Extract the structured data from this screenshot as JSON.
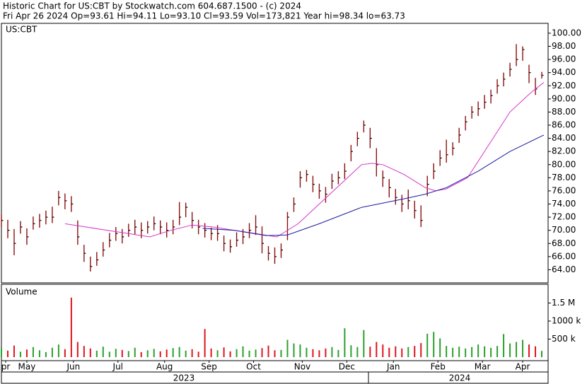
{
  "chart_data": {
    "type": "ohlc",
    "title": "Historic Chart for US:CBT by Stockwatch.com 604.687.1500 - (c) 2024",
    "subtitle": "Fri Apr 26 2024  Op=93.61  Hi=94.11  Lo=93.10  Cl=93.59  Vol=173,821  Year hi=98.34  lo=63.73",
    "symbol_label": "US:CBT",
    "volume_label": "Volume",
    "color": "#8b1010",
    "up_color": "#2ca02c",
    "down_color": "#e0141e",
    "x": [
      0,
      3,
      6,
      9,
      12,
      15,
      18,
      21,
      24,
      27,
      30,
      33,
      36,
      39,
      42,
      45,
      48,
      51,
      54,
      57,
      60,
      63,
      66,
      69,
      72,
      75,
      78,
      81,
      84,
      87,
      90,
      93,
      96,
      99,
      102,
      105,
      108,
      111,
      114,
      117,
      120,
      123,
      126,
      129,
      132,
      135,
      138,
      141,
      144,
      147,
      150,
      153,
      156,
      159,
      162,
      165,
      168,
      171,
      174,
      177,
      180,
      183,
      186,
      189,
      192,
      195,
      198,
      201,
      204,
      207,
      210,
      213,
      216,
      219,
      222,
      225,
      228,
      231,
      234,
      237,
      240,
      243,
      246,
      249,
      252,
      255
    ],
    "highs": [
      72.4,
      71.6,
      70.2,
      71.4,
      70.3,
      72.1,
      72.5,
      73,
      73.6,
      76,
      75.6,
      75.2,
      71.5,
      67.8,
      66,
      66.7,
      68.2,
      69.6,
      70.5,
      70.2,
      71,
      71.6,
      71.2,
      71.4,
      72.1,
      71.5,
      71.2,
      71.6,
      74.3,
      74.2,
      72.8,
      71.6,
      71.1,
      70.4,
      70.8,
      69.2,
      68.6,
      69.7,
      70.2,
      71.1,
      72.3,
      70.6,
      67.6,
      67.4,
      68,
      72.8,
      75,
      79,
      79.2,
      78.3,
      77.1,
      76.6,
      78.6,
      79,
      80.2,
      83,
      85,
      86.7,
      85.6,
      82.5,
      79.1,
      77.8,
      76.3,
      75.4,
      76.2,
      74.5,
      73.8,
      78.3,
      80.2,
      82.2,
      83.8,
      83.4,
      85.6,
      87.4,
      88.9,
      89.6,
      90.6,
      91.4,
      93,
      94,
      95.5,
      98.34,
      98,
      95.2,
      93.2,
      94.11
    ],
    "lows": [
      70.5,
      68.8,
      66.2,
      69.5,
      67.8,
      70.1,
      70.4,
      70.9,
      71.1,
      73.8,
      73.2,
      72.8,
      67.8,
      65.2,
      63.73,
      64.6,
      66,
      67.4,
      68.4,
      68,
      69,
      69.4,
      68.8,
      69.5,
      70,
      69.4,
      68.9,
      69.4,
      70.8,
      72,
      70.3,
      69.4,
      68.9,
      68.5,
      68.4,
      66.8,
      66.6,
      67.5,
      67.9,
      68.8,
      69.3,
      66.5,
      65.4,
      64.9,
      65.8,
      68.5,
      72.8,
      76.5,
      77.4,
      75.8,
      74.8,
      74.2,
      76.3,
      77,
      77.8,
      80.5,
      82.8,
      84.9,
      82.5,
      78.2,
      76.6,
      75,
      73.9,
      72.8,
      73.2,
      71.8,
      70.5,
      75.2,
      77.8,
      79.8,
      80.3,
      81.4,
      83.3,
      85.2,
      87,
      87.4,
      88.5,
      89.3,
      90.8,
      91.9,
      93.4,
      95,
      95.8,
      92.4,
      90.6,
      93.1
    ],
    "closes": [
      71.5,
      70,
      68,
      70.5,
      69,
      71,
      71.5,
      72,
      72,
      75,
      74.5,
      74,
      69,
      66.5,
      64.5,
      65.5,
      67,
      68.5,
      69.5,
      69,
      70,
      70.5,
      70,
      70.5,
      71,
      70.5,
      70,
      70.5,
      72,
      73.5,
      71.5,
      70.5,
      70,
      69.5,
      69.5,
      68,
      67.5,
      68.5,
      69,
      70,
      70.5,
      68,
      66.5,
      66,
      67,
      72,
      74,
      78,
      78.5,
      77,
      76,
      75.5,
      77.5,
      78,
      79,
      82,
      84,
      86,
      84,
      80,
      78,
      76.5,
      75,
      74,
      74.5,
      73,
      71.5,
      77,
      79,
      81,
      81.5,
      82.5,
      84.5,
      86.5,
      88,
      88.5,
      89.5,
      90.5,
      92,
      93,
      94.5,
      96,
      97.5,
      94,
      91.5,
      93.59
    ],
    "volumes": [
      250000,
      180000,
      320000,
      150000,
      210000,
      280000,
      190000,
      140000,
      260000,
      350000,
      220000,
      1650000,
      420000,
      310000,
      240000,
      180000,
      290000,
      150000,
      230000,
      200000,
      170000,
      260000,
      140000,
      190000,
      230000,
      160000,
      210000,
      250000,
      280000,
      180000,
      220000,
      150000,
      780000,
      240000,
      190000,
      270000,
      160000,
      220000,
      300000,
      180000,
      210000,
      250000,
      320000,
      190000,
      200000,
      480000,
      380000,
      350000,
      260000,
      220000,
      190000,
      240000,
      280000,
      200000,
      800000,
      330000,
      280000,
      750000,
      290000,
      420000,
      350000,
      260000,
      300000,
      240000,
      280000,
      310000,
      390000,
      650000,
      700000,
      520000,
      310000,
      260000,
      290000,
      240000,
      280000,
      350000,
      300000,
      260000,
      310000,
      640000,
      380000,
      420000,
      480000,
      350000,
      300000,
      173821
    ],
    "moving_averages": [
      {
        "color": "#d633c8",
        "x": [
          30,
          40,
          50,
          60,
          70,
          80,
          90,
          100,
          110,
          120,
          130,
          140,
          150,
          160,
          170,
          175,
          180,
          190,
          200,
          205,
          210,
          220,
          230,
          240,
          250,
          256
        ],
        "values": [
          71,
          70.5,
          70,
          69.5,
          69,
          70,
          70.8,
          70.5,
          70,
          69.5,
          69,
          71,
          74,
          77,
          80,
          80.2,
          80,
          78.5,
          76.5,
          76,
          76.3,
          78,
          83,
          88,
          91,
          92.5
        ]
      },
      {
        "color": "#1a1aa0",
        "x": [
          95,
          110,
          125,
          135,
          150,
          170,
          190,
          200,
          210,
          225,
          240,
          256
        ],
        "values": [
          70.3,
          70,
          69.2,
          69.3,
          71,
          73.5,
          74.8,
          75.5,
          76.5,
          79,
          82,
          84.5
        ]
      }
    ],
    "xlim": [
      0,
      258
    ],
    "ylim": [
      62,
      101.5
    ],
    "yticks": [
      {
        "value": 64,
        "label": "64.00"
      },
      {
        "value": 66,
        "label": "66.00"
      },
      {
        "value": 68,
        "label": "68.00"
      },
      {
        "value": 70,
        "label": "70.00"
      },
      {
        "value": 72,
        "label": "72.00"
      },
      {
        "value": 74,
        "label": "74.00"
      },
      {
        "value": 76,
        "label": "76.00"
      },
      {
        "value": 78,
        "label": "78.00"
      },
      {
        "value": 80,
        "label": "80.00"
      },
      {
        "value": 82,
        "label": "82.00"
      },
      {
        "value": 84,
        "label": "84.00"
      },
      {
        "value": 86,
        "label": "86.00"
      },
      {
        "value": 88,
        "label": "88.00"
      },
      {
        "value": 90,
        "label": "90.00"
      },
      {
        "value": 92,
        "label": "92.00"
      },
      {
        "value": 94,
        "label": "94.00"
      },
      {
        "value": 96,
        "label": "96.00"
      },
      {
        "value": 98,
        "label": "98.00"
      },
      {
        "value": 100,
        "label": "100.00"
      }
    ],
    "volume_ylim": [
      0,
      2000000
    ],
    "volume_yticks": [
      {
        "value": 500000,
        "label": "500 k"
      },
      {
        "value": 1000000,
        "label": "1000 k"
      },
      {
        "value": 1500000,
        "label": "1.5 M"
      }
    ],
    "xticks": [
      {
        "value": 2,
        "label": "pr"
      },
      {
        "value": 12,
        "label": "May"
      },
      {
        "value": 34,
        "label": "Jun"
      },
      {
        "value": 55,
        "label": "Jul"
      },
      {
        "value": 77,
        "label": "Aug"
      },
      {
        "value": 98,
        "label": "Sep"
      },
      {
        "value": 119,
        "label": "Oct"
      },
      {
        "value": 142,
        "label": "Nov"
      },
      {
        "value": 163,
        "label": "Dec"
      },
      {
        "value": 185,
        "label": "Jan"
      },
      {
        "value": 206,
        "label": "Feb"
      },
      {
        "value": 227,
        "label": "Mar"
      },
      {
        "value": 246,
        "label": "Apr"
      }
    ],
    "year_labels": [
      "2023",
      "2024"
    ]
  }
}
